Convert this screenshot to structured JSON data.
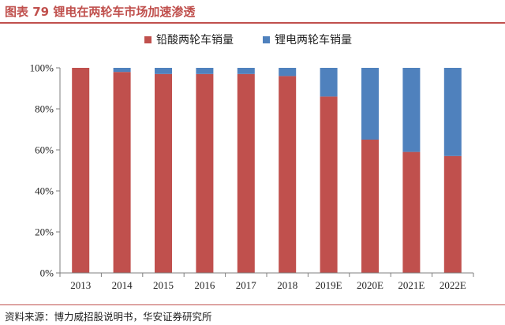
{
  "figure_title": "图表 79  锂电在两轮车市场加速渗透",
  "source": "资料来源：博力威招股说明书，华安证券研究所",
  "colors": {
    "accent": "#c0504d",
    "lead_acid": "#c0504d",
    "lithium": "#4f81bd"
  },
  "chart_data": {
    "type": "bar",
    "stacked": true,
    "categories": [
      "2013",
      "2014",
      "2015",
      "2016",
      "2017",
      "2018",
      "2019E",
      "2020E",
      "2021E",
      "2022E"
    ],
    "series": [
      {
        "name": "铅酸两轮车销量",
        "color": "#c0504d",
        "values": [
          100,
          98,
          97,
          97,
          97,
          96,
          86,
          65,
          59,
          57
        ]
      },
      {
        "name": "锂电两轮车销量",
        "color": "#4f81bd",
        "values": [
          0,
          2,
          3,
          3,
          3,
          4,
          14,
          35,
          41,
          43
        ]
      }
    ],
    "y_ticks": [
      "0%",
      "20%",
      "40%",
      "60%",
      "80%",
      "100%"
    ],
    "ylim": [
      0,
      100
    ],
    "legend_position": "top-center",
    "grid": false
  }
}
